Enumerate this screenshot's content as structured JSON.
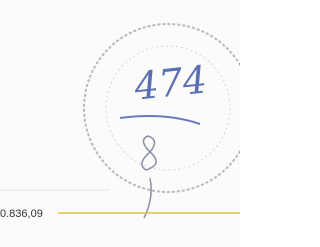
{
  "document": {
    "handwritten_number": "474",
    "amount": "0.836,09"
  }
}
